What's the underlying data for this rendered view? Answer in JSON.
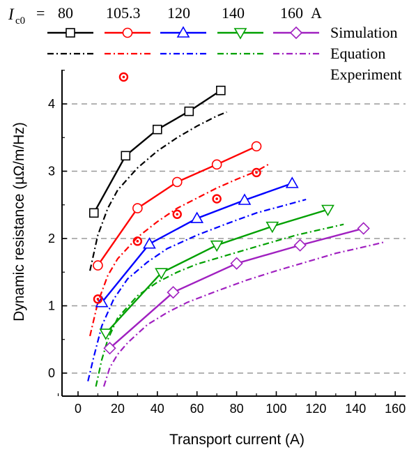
{
  "legend": {
    "ic0_symbol": "I",
    "ic0_subscript": "c0",
    "equals": "=",
    "unit": "A",
    "rows": [
      "Simulation",
      "Equation",
      "Experiment"
    ]
  },
  "colors": {
    "s80": "#000000",
    "s105": "#ff0000",
    "s120": "#0000ff",
    "s140": "#00a000",
    "s160": "#a020c0",
    "grid": "#9a9a9a",
    "axis": "#000000"
  },
  "chart_data": {
    "type": "line",
    "xlabel": "Transport current (A)",
    "ylabel": "Dynamic resistance (µΩ/m/Hz)",
    "xlim": [
      -10,
      160
    ],
    "ylim": [
      -0.2,
      4.6
    ],
    "xticks": [
      0,
      20,
      40,
      60,
      80,
      100,
      120,
      140,
      160
    ],
    "yticks": [
      0,
      1,
      2,
      3,
      4
    ],
    "grid": "horizontal dashed",
    "legend_position": "top",
    "series": [
      {
        "name": "80",
        "color_key": "s80",
        "marker": "square",
        "simulation": [
          [
            8,
            2.38
          ],
          [
            24,
            3.23
          ],
          [
            40,
            3.62
          ],
          [
            56,
            3.89
          ],
          [
            72,
            4.2
          ]
        ],
        "equation": [
          [
            6,
            1.52
          ],
          [
            10,
            2.05
          ],
          [
            15,
            2.45
          ],
          [
            20,
            2.72
          ],
          [
            30,
            3.05
          ],
          [
            40,
            3.3
          ],
          [
            50,
            3.5
          ],
          [
            60,
            3.67
          ],
          [
            70,
            3.82
          ],
          [
            75,
            3.88
          ]
        ],
        "experiment": []
      },
      {
        "name": "105.3",
        "color_key": "s105",
        "marker": "circle",
        "simulation": [
          [
            10,
            1.6
          ],
          [
            30,
            2.45
          ],
          [
            50,
            2.84
          ],
          [
            70,
            3.1
          ],
          [
            90,
            3.37
          ]
        ],
        "equation": [
          [
            6,
            0.55
          ],
          [
            10,
            1.05
          ],
          [
            15,
            1.45
          ],
          [
            20,
            1.7
          ],
          [
            30,
            2.02
          ],
          [
            40,
            2.25
          ],
          [
            50,
            2.45
          ],
          [
            60,
            2.6
          ],
          [
            70,
            2.75
          ],
          [
            80,
            2.88
          ],
          [
            90,
            3.0
          ],
          [
            96,
            3.1
          ]
        ],
        "experiment": [
          [
            23,
            4.4
          ],
          [
            10,
            1.1
          ],
          [
            30,
            1.96
          ],
          [
            50,
            2.36
          ],
          [
            70,
            2.59
          ],
          [
            90,
            2.98
          ]
        ]
      },
      {
        "name": "120",
        "color_key": "s120",
        "marker": "triangle-up",
        "simulation": [
          [
            12,
            1.05
          ],
          [
            36,
            1.92
          ],
          [
            60,
            2.3
          ],
          [
            84,
            2.57
          ],
          [
            108,
            2.82
          ]
        ],
        "equation": [
          [
            5,
            -0.12
          ],
          [
            8,
            0.25
          ],
          [
            12,
            0.7
          ],
          [
            18,
            1.1
          ],
          [
            25,
            1.4
          ],
          [
            35,
            1.65
          ],
          [
            45,
            1.85
          ],
          [
            60,
            2.05
          ],
          [
            75,
            2.22
          ],
          [
            90,
            2.38
          ],
          [
            105,
            2.5
          ],
          [
            115,
            2.58
          ]
        ],
        "experiment": []
      },
      {
        "name": "140",
        "color_key": "s140",
        "marker": "triangle-down",
        "simulation": [
          [
            14,
            0.59
          ],
          [
            42,
            1.49
          ],
          [
            70,
            1.9
          ],
          [
            98,
            2.18
          ],
          [
            126,
            2.43
          ]
        ],
        "equation": [
          [
            9,
            -0.2
          ],
          [
            12,
            0.2
          ],
          [
            15,
            0.5
          ],
          [
            20,
            0.82
          ],
          [
            30,
            1.15
          ],
          [
            40,
            1.35
          ],
          [
            50,
            1.5
          ],
          [
            60,
            1.62
          ],
          [
            75,
            1.75
          ],
          [
            90,
            1.88
          ],
          [
            110,
            2.05
          ],
          [
            125,
            2.15
          ],
          [
            134,
            2.21
          ]
        ],
        "experiment": []
      },
      {
        "name": "160",
        "color_key": "s160",
        "marker": "diamond",
        "simulation": [
          [
            16,
            0.37
          ],
          [
            48,
            1.2
          ],
          [
            80,
            1.63
          ],
          [
            112,
            1.9
          ],
          [
            144,
            2.15
          ]
        ],
        "equation": [
          [
            13,
            -0.2
          ],
          [
            16,
            0.08
          ],
          [
            20,
            0.28
          ],
          [
            25,
            0.45
          ],
          [
            35,
            0.72
          ],
          [
            45,
            0.9
          ],
          [
            55,
            1.05
          ],
          [
            70,
            1.22
          ],
          [
            85,
            1.38
          ],
          [
            100,
            1.52
          ],
          [
            115,
            1.65
          ],
          [
            130,
            1.78
          ],
          [
            145,
            1.88
          ],
          [
            155,
            1.95
          ]
        ],
        "experiment": []
      }
    ]
  }
}
